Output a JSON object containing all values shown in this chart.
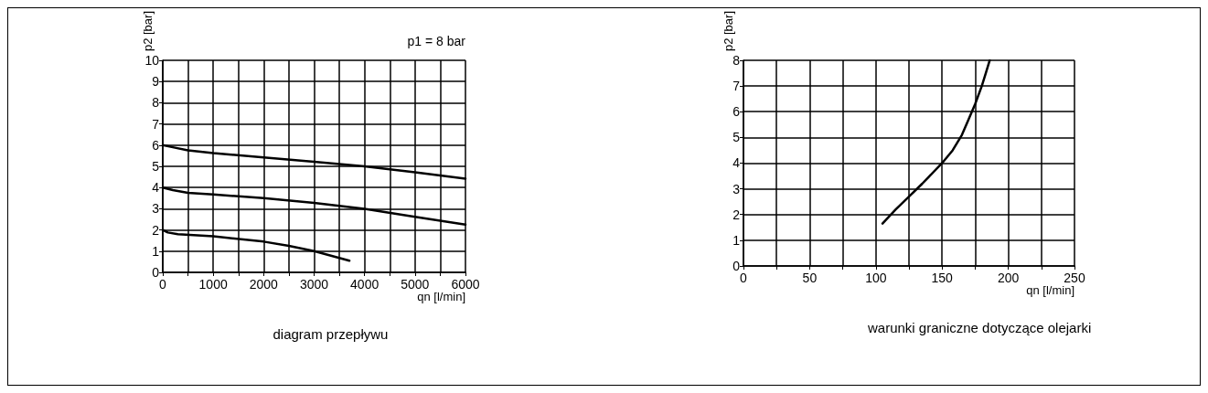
{
  "chart_data": [
    {
      "type": "line",
      "title": "diagram przepływu",
      "xlabel": "qn [l/min]",
      "ylabel": "p2 [bar]",
      "annotations": [
        "p1 = 8 bar"
      ],
      "marker": "none",
      "line_style": "solid",
      "grid": true,
      "xlim": [
        0,
        6000
      ],
      "xticks": [
        0,
        {
          "value": 500,
          "label": null
        },
        1000,
        {
          "value": 1500,
          "label": null
        },
        2000,
        {
          "value": 2500,
          "label": null
        },
        3000,
        {
          "value": 3500,
          "label": null
        },
        4000,
        {
          "value": 4500,
          "label": null
        },
        5000,
        {
          "value": 5500,
          "label": null
        },
        6000
      ],
      "ylim": [
        0,
        10
      ],
      "yticks": [
        0,
        1,
        2,
        3,
        4,
        5,
        6,
        7,
        8,
        9,
        10
      ],
      "series": [
        {
          "color": "#000000",
          "x": [
            0,
            200,
            500,
            1000,
            2000,
            3000,
            4000,
            5000,
            6000
          ],
          "values": [
            6,
            5.9,
            5.75,
            5.62,
            5.42,
            5.22,
            5.0,
            4.72,
            4.42
          ]
        },
        {
          "color": "#000000",
          "x": [
            0,
            200,
            500,
            1000,
            2000,
            3000,
            4000,
            5000,
            6000
          ],
          "values": [
            4,
            3.88,
            3.75,
            3.67,
            3.5,
            3.28,
            3.0,
            2.62,
            2.25
          ]
        },
        {
          "color": "#000000",
          "x": [
            0,
            100,
            300,
            1000,
            2000,
            2500,
            3000,
            3700
          ],
          "values": [
            2,
            1.88,
            1.8,
            1.7,
            1.45,
            1.25,
            1.0,
            0.55
          ]
        }
      ]
    },
    {
      "type": "line",
      "title": "warunki graniczne dotyczące olejarki",
      "xlabel": "qn [l/min]",
      "ylabel": "p2 [bar]",
      "marker": "none",
      "line_style": "solid",
      "grid": true,
      "xlim": [
        0,
        250
      ],
      "xticks": [
        0,
        {
          "value": 25,
          "label": null
        },
        50,
        {
          "value": 75,
          "label": null
        },
        100,
        {
          "value": 125,
          "label": null
        },
        150,
        {
          "value": 175,
          "label": null
        },
        200,
        {
          "value": 225,
          "label": null
        },
        250
      ],
      "ylim": [
        0,
        8
      ],
      "yticks": [
        0,
        1,
        2,
        3,
        4,
        5,
        6,
        7,
        8
      ],
      "series": [
        {
          "color": "#000000",
          "x": [
            105,
            115,
            125,
            135,
            150,
            158,
            165,
            170,
            175,
            180,
            183,
            186
          ],
          "values": [
            1.65,
            2.2,
            2.7,
            3.2,
            4.0,
            4.5,
            5.1,
            5.7,
            6.3,
            7.0,
            7.5,
            8.0
          ]
        }
      ]
    }
  ]
}
